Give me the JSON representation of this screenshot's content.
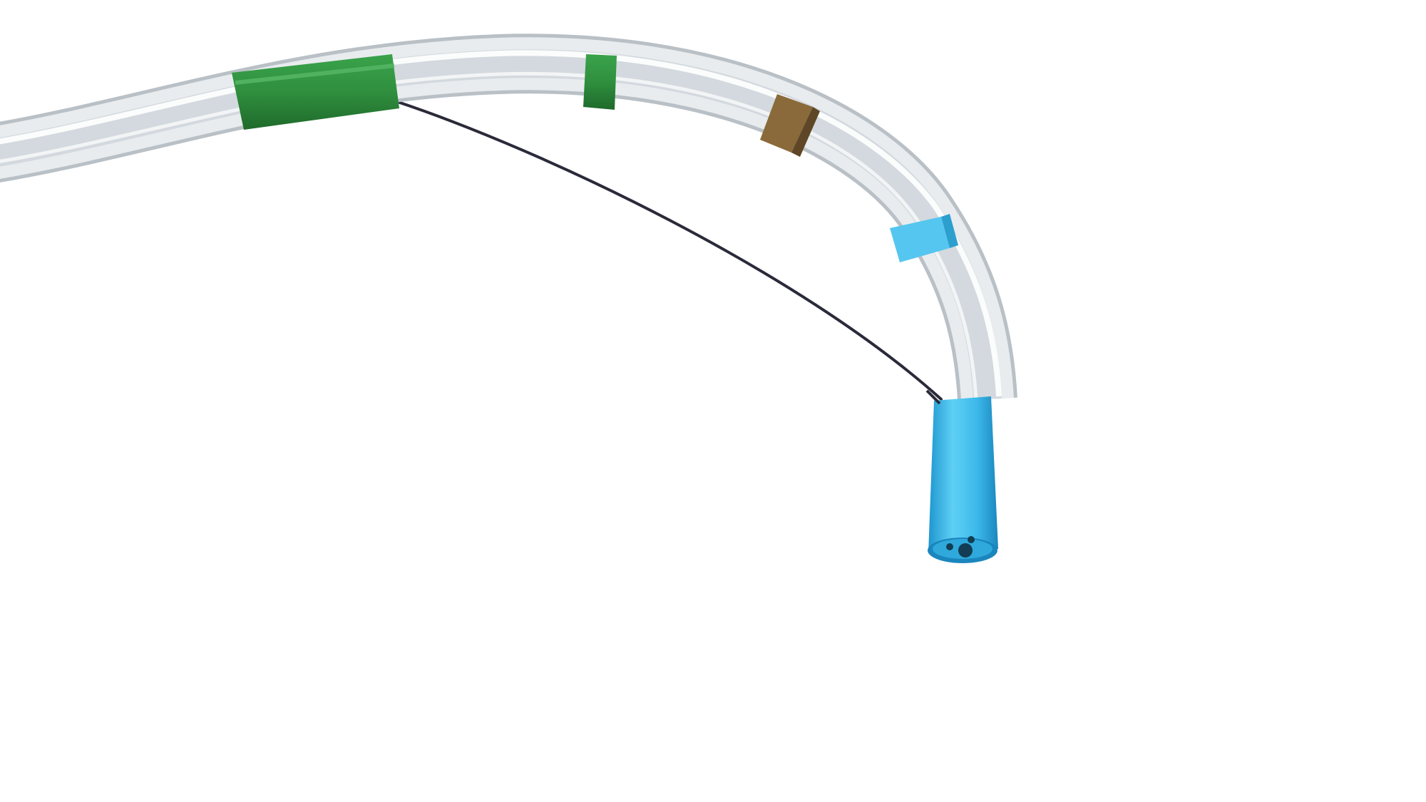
{
  "scene": {
    "subject": "catheter-tip",
    "background_color": "#ffffff",
    "colors": {
      "tube_body": "#e8ecef",
      "tube_edge": "#b9c0c6",
      "tube_highlight": "#ffffff",
      "band_green": "#2f8f3e",
      "band_green_dark": "#1f6a2b",
      "band_brown": "#8a6a3a",
      "band_cyan": "#55c6ef",
      "tip_cyan": "#3cb8ea",
      "tip_cyan_dark": "#1e96cf",
      "wire": "#2a2a3a",
      "lumen": "#123d52"
    }
  }
}
